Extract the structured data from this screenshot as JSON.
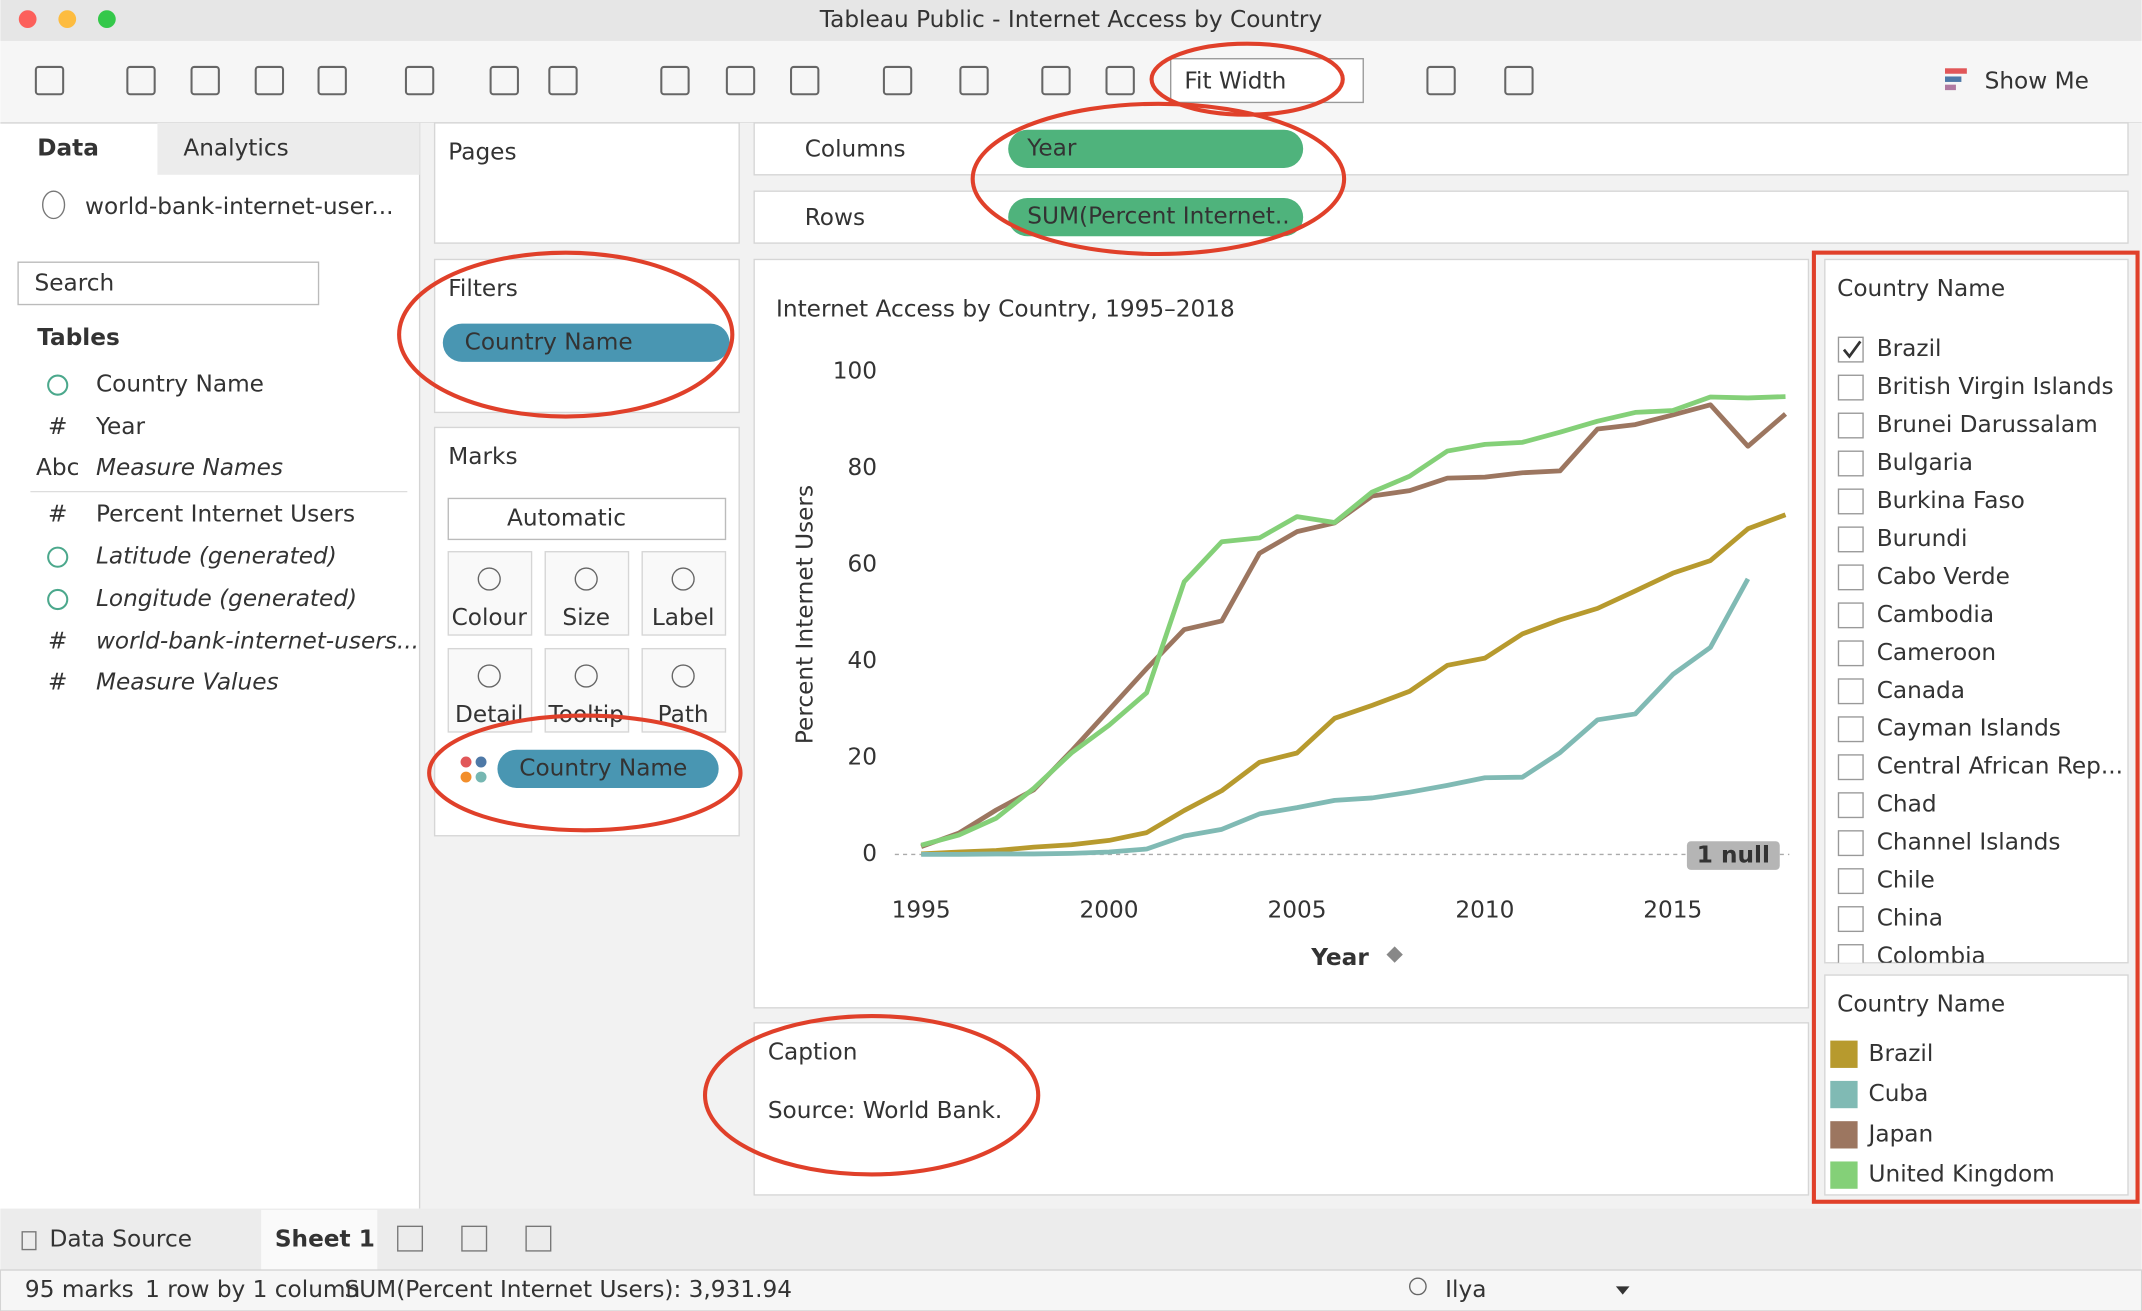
{
  "window_title": "Tableau Public - Internet Access by Country",
  "toolbar": {
    "fit": "Fit Width",
    "show_me": "Show Me"
  },
  "data_pane": {
    "tabs": [
      "Data",
      "Analytics"
    ],
    "source": "world-bank-internet-user...",
    "search": "Search",
    "tables_heading": "Tables",
    "fields": [
      {
        "name": "Country Name",
        "geo": true
      },
      {
        "name": "Year",
        "icon": "#"
      },
      {
        "name": "Measure Names",
        "icon": "Abc",
        "italic": true
      },
      {
        "name": "Percent Internet Users",
        "icon": "#"
      },
      {
        "name": "Latitude (generated)",
        "geo": true,
        "italic": true
      },
      {
        "name": "Longitude (generated)",
        "geo": true,
        "italic": true
      },
      {
        "name": "world-bank-internet-users...",
        "icon": "#",
        "italic": true
      },
      {
        "name": "Measure Values",
        "icon": "#",
        "italic": true
      }
    ]
  },
  "shelves": {
    "pages": "Pages",
    "filters": "Filters",
    "filter_pill": "Country Name",
    "marks": "Marks",
    "mark_type": "Automatic",
    "mark_cards": [
      "Colour",
      "Size",
      "Label",
      "Detail",
      "Tooltip",
      "Path"
    ],
    "marks_pill": "Country Name",
    "columns": "Columns",
    "columns_pill": "Year",
    "rows": "Rows",
    "rows_pill": "SUM(Percent Internet.."
  },
  "caption": {
    "title": "Caption",
    "text": "Source: World Bank."
  },
  "filter_card": {
    "title": "Country Name",
    "items": [
      {
        "name": "Brazil",
        "checked": true
      },
      {
        "name": "British Virgin Islands"
      },
      {
        "name": "Brunei Darussalam"
      },
      {
        "name": "Bulgaria"
      },
      {
        "name": "Burkina Faso"
      },
      {
        "name": "Burundi"
      },
      {
        "name": "Cabo Verde"
      },
      {
        "name": "Cambodia"
      },
      {
        "name": "Cameroon"
      },
      {
        "name": "Canada"
      },
      {
        "name": "Cayman Islands"
      },
      {
        "name": "Central African Rep..."
      },
      {
        "name": "Chad"
      },
      {
        "name": "Channel Islands"
      },
      {
        "name": "Chile"
      },
      {
        "name": "China"
      },
      {
        "name": "Colombia"
      }
    ]
  },
  "chart_data": {
    "type": "line",
    "title": "Internet Access by Country, 1995–2018",
    "x_label": "Year",
    "y_label": "Percent Internet Users",
    "legend_title": "Country Name",
    "null_badge": "1 null",
    "x": [
      1995,
      1996,
      1997,
      1998,
      1999,
      2000,
      2001,
      2002,
      2003,
      2004,
      2005,
      2006,
      2007,
      2008,
      2009,
      2010,
      2011,
      2012,
      2013,
      2014,
      2015,
      2016,
      2017,
      2018
    ],
    "series": [
      {
        "name": "Brazil",
        "color": "#b79a2e",
        "values": [
          0.1,
          0.5,
          0.8,
          1.5,
          2,
          2.9,
          4.5,
          9.1,
          13.2,
          19.1,
          21,
          28.2,
          30.9,
          33.8,
          39.2,
          40.7,
          45.7,
          48.6,
          51,
          54.6,
          58.3,
          60.9,
          67.5,
          70.4
        ]
      },
      {
        "name": "Cuba",
        "color": "#80bab4",
        "values": [
          0,
          0,
          0.1,
          0.1,
          0.2,
          0.5,
          1.1,
          3.8,
          5.2,
          8.4,
          9.7,
          11.2,
          11.7,
          12.9,
          14.3,
          15.9,
          16,
          21.1,
          27.9,
          29.1,
          37.3,
          42.9,
          57.1,
          null
        ]
      },
      {
        "name": "Japan",
        "color": "#9c7660",
        "values": [
          1.6,
          4.4,
          9.2,
          13.4,
          21.4,
          30,
          38.5,
          46.6,
          48.4,
          62.4,
          66.9,
          68.7,
          74.3,
          75.4,
          78,
          78.2,
          79.1,
          79.5,
          88.2,
          89.1,
          91.1,
          93.2,
          84.6,
          91.3
        ]
      },
      {
        "name": "United Kingdom",
        "color": "#84d078",
        "values": [
          1.9,
          4,
          7.5,
          13.7,
          21,
          26.8,
          33.5,
          56.5,
          64.8,
          65.6,
          70,
          68.8,
          75.1,
          78.4,
          83.6,
          85,
          85.4,
          87.5,
          89.8,
          91.6,
          92,
          94.8,
          94.6,
          94.9
        ]
      }
    ],
    "xlim": [
      1994.3,
      2018.1
    ],
    "ylim": [
      -3.5,
      103.5
    ],
    "xticks": [
      1995,
      2000,
      2005,
      2010,
      2015
    ],
    "yticks": [
      0,
      20,
      40,
      60,
      80,
      100
    ]
  },
  "tabs_bar": {
    "data_source": "Data Source",
    "sheet": "Sheet 1"
  },
  "status": {
    "items": [
      "95 marks",
      "1 row by 1 column",
      "SUM(Percent Internet Users): 3,931.94"
    ],
    "user": "Ilya"
  }
}
